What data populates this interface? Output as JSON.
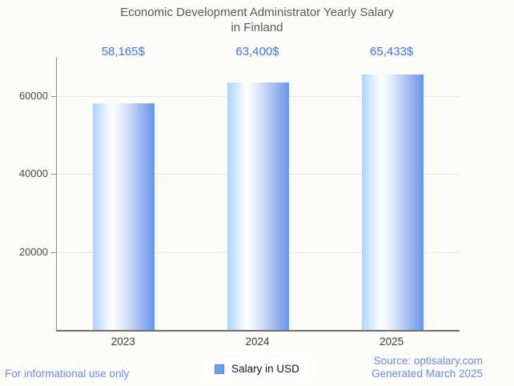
{
  "title": {
    "line1": "Economic Development Administrator Yearly Salary",
    "line2": "in Finland"
  },
  "chart_data": {
    "type": "bar",
    "title": "Economic Development Administrator Yearly Salary in Finland",
    "categories": [
      "2023",
      "2024",
      "2025"
    ],
    "series": [
      {
        "name": "Salary in USD",
        "values": [
          58165,
          63400,
          65433
        ]
      }
    ],
    "value_labels": [
      "58,165$",
      "63,400$",
      "65,433$"
    ],
    "xlabel": "",
    "ylabel": "",
    "ylim": [
      0,
      70000
    ],
    "yticks": [
      20000,
      40000,
      60000
    ],
    "ytick_labels": [
      "20000",
      "40000",
      "60000"
    ],
    "grid": true,
    "legend_position": "bottom-center",
    "bar_gradient": [
      "#aed3fa",
      "#ffffff",
      "#6b93e8"
    ]
  },
  "legend": {
    "label": "Salary in USD",
    "swatch_color": "#6d9eeb"
  },
  "footer": {
    "disclaimer": "For informational use only",
    "source_line1": "Source: optisalary.com",
    "source_line2": "Generated March 2025"
  },
  "colors": {
    "background": "#fcfcf9",
    "title_text": "#58585a",
    "value_label_text": "#4575d9",
    "axis_line": "#8f8f8f",
    "gridline": "#e5e5e5",
    "footer_text": "#6b8de0",
    "legend_swatch": "#6d9eeb"
  }
}
